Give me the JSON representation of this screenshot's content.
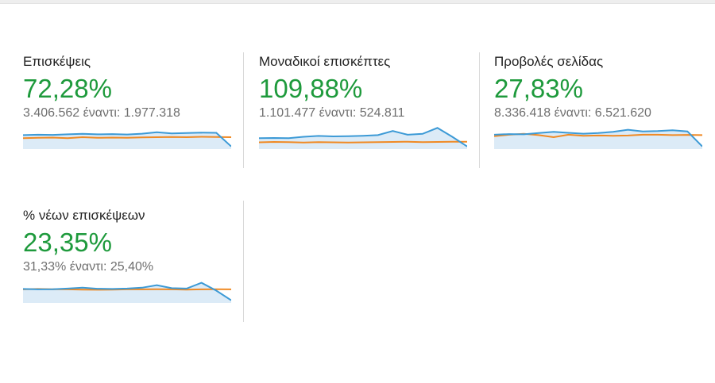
{
  "colors": {
    "accent_green": "#1e9a3c",
    "current_series": "#3c9ad6",
    "compare_series": "#f08a24",
    "area_fill": "#dcebf7"
  },
  "metrics": [
    {
      "title": "Επισκέψεις",
      "change": "72,28%",
      "compare_text": "3.406.562 έναντι: 1.977.318",
      "spark_current": [
        0.6,
        0.62,
        0.61,
        0.64,
        0.66,
        0.64,
        0.65,
        0.63,
        0.67,
        0.74,
        0.68,
        0.7,
        0.72,
        0.71,
        0.05
      ],
      "spark_compare": [
        0.45,
        0.47,
        0.48,
        0.45,
        0.5,
        0.47,
        0.48,
        0.47,
        0.49,
        0.5,
        0.51,
        0.5,
        0.52,
        0.51,
        0.5
      ]
    },
    {
      "title": "Μοναδικοί επισκέπτες",
      "change": "109,88%",
      "compare_text": "1.101.477 έναντι: 524.811",
      "spark_current": [
        0.45,
        0.46,
        0.45,
        0.52,
        0.56,
        0.54,
        0.55,
        0.57,
        0.6,
        0.8,
        0.62,
        0.66,
        0.95,
        0.52,
        0.05
      ],
      "spark_compare": [
        0.25,
        0.27,
        0.26,
        0.24,
        0.26,
        0.25,
        0.24,
        0.25,
        0.26,
        0.27,
        0.28,
        0.26,
        0.27,
        0.28,
        0.28
      ]
    },
    {
      "title": "Προβολές σελίδας",
      "change": "27,83%",
      "compare_text": "8.336.418 έναντι: 6.521.620",
      "spark_current": [
        0.62,
        0.65,
        0.64,
        0.7,
        0.76,
        0.71,
        0.67,
        0.7,
        0.76,
        0.86,
        0.78,
        0.8,
        0.84,
        0.78,
        0.05
      ],
      "spark_compare": [
        0.55,
        0.62,
        0.66,
        0.6,
        0.5,
        0.62,
        0.57,
        0.58,
        0.57,
        0.58,
        0.62,
        0.62,
        0.6,
        0.61,
        0.6
      ]
    },
    {
      "title": "% νέων επισκέψεων",
      "change": "23,35%",
      "compare_text": "31,33% έναντι: 25,40%",
      "spark_current": [
        0.6,
        0.58,
        0.59,
        0.62,
        0.66,
        0.61,
        0.6,
        0.62,
        0.66,
        0.78,
        0.64,
        0.62,
        0.9,
        0.52,
        0.05
      ],
      "spark_compare": [
        0.58,
        0.6,
        0.59,
        0.58,
        0.57,
        0.56,
        0.57,
        0.58,
        0.58,
        0.59,
        0.58,
        0.57,
        0.58,
        0.59,
        0.58
      ]
    }
  ]
}
